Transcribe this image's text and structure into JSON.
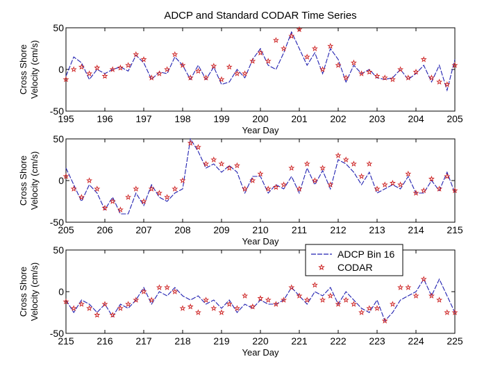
{
  "figure_title": "ADCP and Standard CODAR Time Series",
  "legend": {
    "entries": [
      {
        "label": "ADCP Bin 16"
      },
      {
        "label": "CODAR"
      }
    ]
  },
  "colors": {
    "adcp": "#1f1fb0",
    "codar": "#cc1f1f",
    "axis": "#000000"
  },
  "chart_data": [
    {
      "type": "line",
      "title": "ADCP and Standard CODAR Time Series",
      "xlabel": "Year Day",
      "ylabel_lines": [
        "Cross Shore",
        "Velocity (cm/s)"
      ],
      "xlim": [
        195,
        205
      ],
      "ylim": [
        -50,
        50
      ],
      "xticks": [
        195,
        196,
        197,
        198,
        199,
        200,
        201,
        202,
        203,
        204,
        205
      ],
      "yticks": [
        -50,
        0,
        50
      ],
      "series": [
        {
          "name": "ADCP Bin 16",
          "style": "dashed-line",
          "x": [
            195.0,
            195.2,
            195.4,
            195.6,
            195.8,
            196.0,
            196.2,
            196.4,
            196.6,
            196.8,
            197.0,
            197.2,
            197.4,
            197.6,
            197.8,
            198.0,
            198.2,
            198.4,
            198.6,
            198.8,
            199.0,
            199.2,
            199.4,
            199.6,
            199.8,
            200.0,
            200.2,
            200.4,
            200.6,
            200.8,
            201.0,
            201.2,
            201.4,
            201.6,
            201.8,
            202.0,
            202.2,
            202.4,
            202.6,
            202.8,
            203.0,
            203.2,
            203.4,
            203.6,
            203.8,
            204.0,
            204.2,
            204.4,
            204.6,
            204.8,
            205.0
          ],
          "y": [
            -8,
            15,
            8,
            -12,
            0,
            -5,
            0,
            3,
            -2,
            17,
            8,
            -12,
            -3,
            -5,
            15,
            5,
            -12,
            5,
            -12,
            3,
            -18,
            -15,
            0,
            -10,
            12,
            25,
            5,
            0,
            20,
            45,
            25,
            5,
            20,
            -5,
            25,
            12,
            -15,
            5,
            -5,
            0,
            -10,
            -12,
            -10,
            0,
            -12,
            -5,
            5,
            -15,
            5,
            -25,
            12
          ]
        },
        {
          "name": "CODAR",
          "style": "star-markers",
          "x": [
            195.0,
            195.2,
            195.4,
            195.6,
            195.8,
            196.0,
            196.2,
            196.4,
            196.6,
            196.8,
            197.0,
            197.2,
            197.4,
            197.6,
            197.8,
            198.0,
            198.2,
            198.4,
            198.6,
            198.8,
            199.0,
            199.2,
            199.4,
            199.6,
            199.8,
            200.0,
            200.2,
            200.4,
            200.6,
            200.8,
            201.0,
            201.2,
            201.4,
            201.6,
            201.8,
            202.0,
            202.2,
            202.4,
            202.6,
            202.8,
            203.0,
            203.2,
            203.4,
            203.6,
            203.8,
            204.0,
            204.2,
            204.4,
            204.6,
            204.8,
            205.0
          ],
          "y": [
            -12,
            0,
            3,
            -5,
            2,
            -8,
            0,
            2,
            5,
            18,
            12,
            -10,
            -5,
            0,
            18,
            5,
            -10,
            -2,
            -10,
            4,
            -12,
            3,
            -5,
            -5,
            10,
            20,
            10,
            35,
            25,
            40,
            48,
            15,
            25,
            0,
            28,
            5,
            -10,
            8,
            -5,
            -3,
            -8,
            -10,
            -12,
            0,
            -10,
            -3,
            12,
            -10,
            -15,
            -18,
            5
          ]
        }
      ]
    },
    {
      "type": "line",
      "xlabel": "Year Day",
      "ylabel_lines": [
        "Cross Shore",
        "Velocity (cm/s)"
      ],
      "xlim": [
        205,
        215
      ],
      "ylim": [
        -50,
        50
      ],
      "xticks": [
        205,
        206,
        207,
        208,
        209,
        210,
        211,
        212,
        213,
        214,
        215
      ],
      "yticks": [
        -50,
        0,
        50
      ],
      "series": [
        {
          "name": "ADCP Bin 16",
          "style": "dashed-line",
          "x": [
            205.0,
            205.2,
            205.4,
            205.6,
            205.8,
            206.0,
            206.2,
            206.4,
            206.6,
            206.8,
            207.0,
            207.2,
            207.4,
            207.6,
            207.8,
            208.0,
            208.2,
            208.4,
            208.6,
            208.8,
            209.0,
            209.2,
            209.4,
            209.6,
            209.8,
            210.0,
            210.2,
            210.4,
            210.6,
            210.8,
            211.0,
            211.2,
            211.4,
            211.6,
            211.8,
            212.0,
            212.2,
            212.4,
            212.6,
            212.8,
            213.0,
            213.2,
            213.4,
            213.6,
            213.8,
            214.0,
            214.2,
            214.4,
            214.6,
            214.8,
            215.0
          ],
          "y": [
            15,
            -5,
            -25,
            -5,
            -15,
            -35,
            -20,
            -40,
            -40,
            -15,
            -30,
            -5,
            -20,
            -25,
            -15,
            -10,
            50,
            35,
            15,
            20,
            10,
            18,
            10,
            -15,
            5,
            5,
            -15,
            -5,
            -10,
            5,
            -15,
            15,
            -5,
            12,
            -10,
            25,
            20,
            10,
            -5,
            10,
            -15,
            -10,
            -5,
            -10,
            5,
            -15,
            -15,
            0,
            -12,
            10,
            -15
          ]
        },
        {
          "name": "CODAR",
          "style": "star-markers",
          "x": [
            205.0,
            205.2,
            205.4,
            205.6,
            205.8,
            206.0,
            206.2,
            206.4,
            206.6,
            206.8,
            207.0,
            207.2,
            207.4,
            207.6,
            207.8,
            208.0,
            208.2,
            208.4,
            208.6,
            208.8,
            209.0,
            209.2,
            209.4,
            209.6,
            209.8,
            210.0,
            210.2,
            210.4,
            210.6,
            210.8,
            211.0,
            211.2,
            211.4,
            211.6,
            211.8,
            212.0,
            212.2,
            212.4,
            212.6,
            212.8,
            213.0,
            213.2,
            213.4,
            213.6,
            213.8,
            214.0,
            214.2,
            214.4,
            214.6,
            214.8,
            215.0
          ],
          "y": [
            5,
            -10,
            -20,
            0,
            -10,
            -33,
            -25,
            -35,
            -20,
            -10,
            -25,
            -10,
            -15,
            -20,
            -10,
            0,
            45,
            40,
            20,
            25,
            20,
            15,
            18,
            -10,
            0,
            8,
            -10,
            -8,
            -5,
            15,
            -10,
            20,
            0,
            15,
            -5,
            30,
            25,
            20,
            5,
            20,
            -10,
            -5,
            -3,
            -5,
            8,
            -15,
            -12,
            2,
            -10,
            5,
            -12
          ]
        }
      ]
    },
    {
      "type": "line",
      "xlabel": "Year Day",
      "ylabel_lines": [
        "Cross Shore",
        "Velocity (cm/s)"
      ],
      "xlim": [
        215,
        225
      ],
      "ylim": [
        -50,
        50
      ],
      "xticks": [
        215,
        216,
        217,
        218,
        219,
        220,
        221,
        222,
        223,
        224,
        225
      ],
      "yticks": [
        -50,
        0,
        50
      ],
      "series": [
        {
          "name": "ADCP Bin 16",
          "style": "dashed-line",
          "x": [
            215.0,
            215.2,
            215.4,
            215.6,
            215.8,
            216.0,
            216.2,
            216.4,
            216.6,
            216.8,
            217.0,
            217.2,
            217.4,
            217.6,
            217.8,
            218.0,
            218.2,
            218.4,
            218.6,
            218.8,
            219.0,
            219.2,
            219.4,
            219.6,
            219.8,
            220.0,
            220.2,
            220.4,
            220.6,
            220.8,
            221.0,
            221.2,
            221.4,
            221.6,
            221.8,
            222.0,
            222.2,
            222.4,
            222.6,
            222.8,
            223.0,
            223.2,
            223.4,
            223.6,
            223.8,
            224.0,
            224.2,
            224.4,
            224.6,
            224.8,
            225.0
          ],
          "y": [
            -10,
            -25,
            -10,
            -15,
            -25,
            -15,
            -30,
            -15,
            -20,
            -10,
            5,
            -15,
            0,
            -5,
            5,
            -5,
            -10,
            -5,
            -15,
            -10,
            -20,
            -10,
            -25,
            -15,
            -20,
            -10,
            -15,
            -15,
            -10,
            5,
            -5,
            -15,
            0,
            -5,
            5,
            -15,
            0,
            -10,
            -20,
            -25,
            -10,
            -35,
            -25,
            -10,
            -5,
            0,
            15,
            -5,
            15,
            -5,
            -25
          ]
        },
        {
          "name": "CODAR",
          "style": "star-markers",
          "x": [
            215.0,
            215.2,
            215.4,
            215.6,
            215.8,
            216.0,
            216.2,
            216.4,
            216.6,
            216.8,
            217.0,
            217.2,
            217.4,
            217.6,
            217.8,
            218.0,
            218.2,
            218.4,
            218.6,
            218.8,
            219.0,
            219.2,
            219.4,
            219.6,
            219.8,
            220.0,
            220.2,
            220.4,
            220.6,
            220.8,
            221.0,
            221.2,
            221.4,
            221.6,
            221.8,
            222.0,
            222.2,
            222.4,
            222.6,
            222.8,
            223.0,
            223.2,
            223.4,
            223.6,
            223.8,
            224.0,
            224.2,
            224.4,
            224.6,
            224.8,
            225.0
          ],
          "y": [
            -12,
            -20,
            -15,
            -20,
            -28,
            -15,
            -28,
            -20,
            -15,
            -10,
            0,
            -10,
            5,
            5,
            0,
            -20,
            -18,
            -25,
            -10,
            -20,
            -25,
            -15,
            -20,
            -5,
            -18,
            -8,
            -10,
            -15,
            -10,
            5,
            -5,
            -10,
            8,
            -10,
            -5,
            -15,
            -10,
            -15,
            -25,
            -20,
            -20,
            -35,
            -15,
            5,
            5,
            -5,
            15,
            -5,
            -10,
            -25,
            -25
          ]
        }
      ]
    }
  ]
}
